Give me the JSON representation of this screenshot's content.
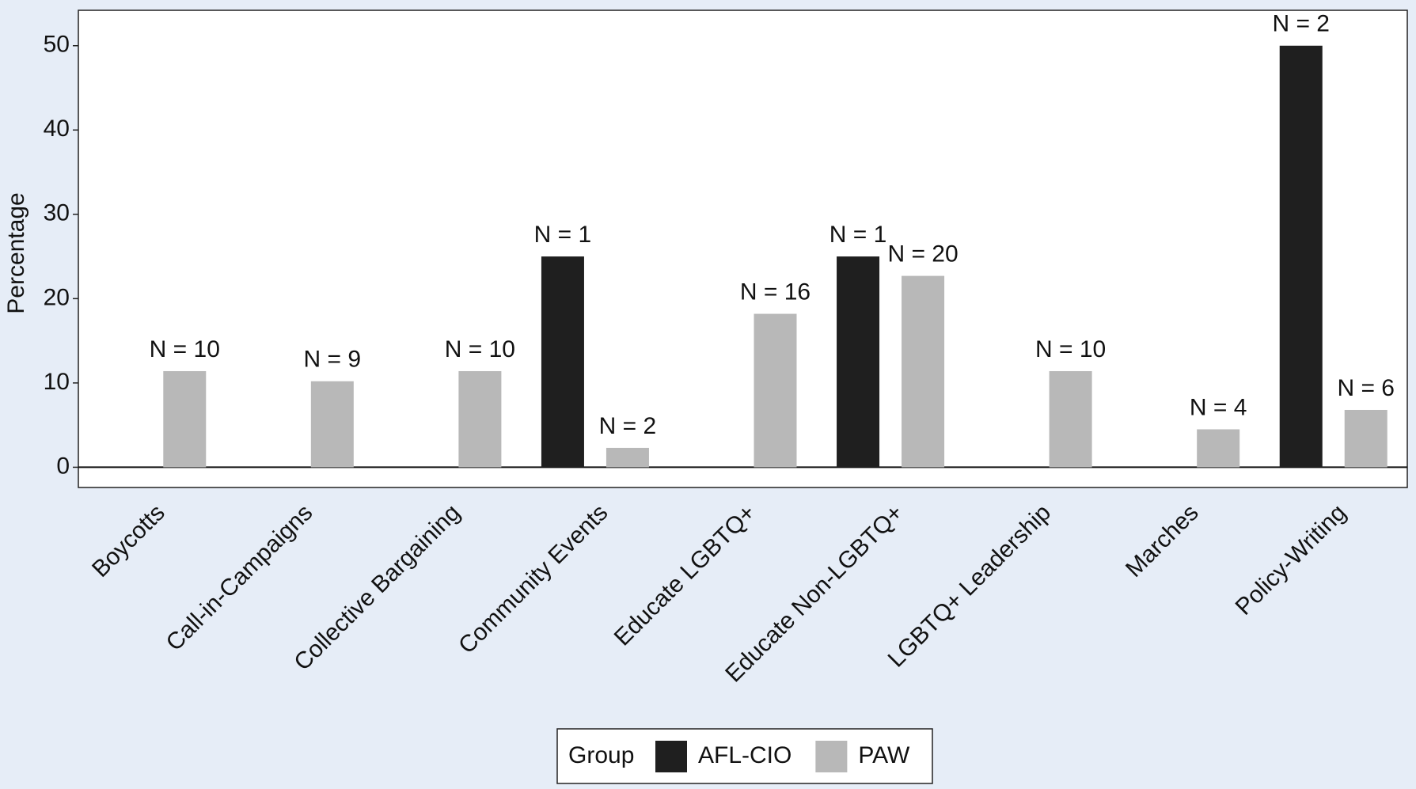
{
  "chart_data": {
    "type": "bar",
    "y_label": "Percentage",
    "categories": [
      "Boycotts",
      "Call-in-Campaigns",
      "Collective Bargaining",
      "Community Events",
      "Educate LGBTQ+",
      "Educate Non-LGBTQ+",
      "LGBTQ+ Leadership",
      "Marches",
      "Policy-Writing"
    ],
    "series": [
      {
        "name": "AFL-CIO",
        "color": "#1f1f1f",
        "values": [
          null,
          null,
          null,
          25,
          null,
          25,
          null,
          null,
          50
        ],
        "n_labels": [
          null,
          null,
          null,
          "N = 1",
          null,
          "N = 1",
          null,
          null,
          "N = 2"
        ]
      },
      {
        "name": "PAW",
        "color": "#b8b8b8",
        "values": [
          11.4,
          10.2,
          11.4,
          2.3,
          18.2,
          22.7,
          11.4,
          4.5,
          6.8
        ],
        "n_labels": [
          "N = 10",
          "N = 9",
          "N = 10",
          "N = 2",
          "N = 16",
          "N = 20",
          "N = 10",
          "N = 4",
          "N = 6"
        ]
      }
    ],
    "legend_title": "Group",
    "legend_position": "bottom",
    "ylim": [
      -2.4,
      54.2
    ],
    "yticks": [
      0,
      10,
      20,
      30,
      40,
      50
    ]
  }
}
